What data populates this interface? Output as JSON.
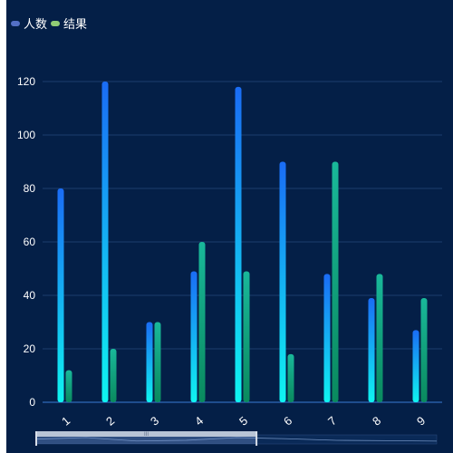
{
  "chart_data": {
    "type": "bar",
    "categories": [
      "1",
      "2",
      "3",
      "4",
      "5",
      "6",
      "7",
      "8",
      "9"
    ],
    "series": [
      {
        "name": "人数",
        "values": [
          80,
          120,
          30,
          49,
          118,
          90,
          48,
          39,
          27
        ]
      },
      {
        "name": "结果",
        "values": [
          12,
          20,
          30,
          60,
          49,
          18,
          90,
          48,
          39
        ]
      }
    ],
    "ylim": [
      0,
      120
    ],
    "yticks": [
      "0",
      "20",
      "40",
      "60",
      "80",
      "100",
      "120"
    ],
    "grid": true,
    "legend_position": "top-left",
    "colors": {
      "background": "#041f47",
      "series1_top": "#1a6cf5",
      "series1_bottom": "#0ff5f0",
      "series2_top": "#19b89a",
      "series2_bottom": "#0a8a5e",
      "legend1": "#5470c6",
      "legend2": "#91cc75",
      "grid": "#1b3d6e",
      "axis": "#3a7bd5",
      "text": "#ffffff"
    },
    "datazoom": {
      "range_percent": [
        0,
        55
      ]
    }
  }
}
